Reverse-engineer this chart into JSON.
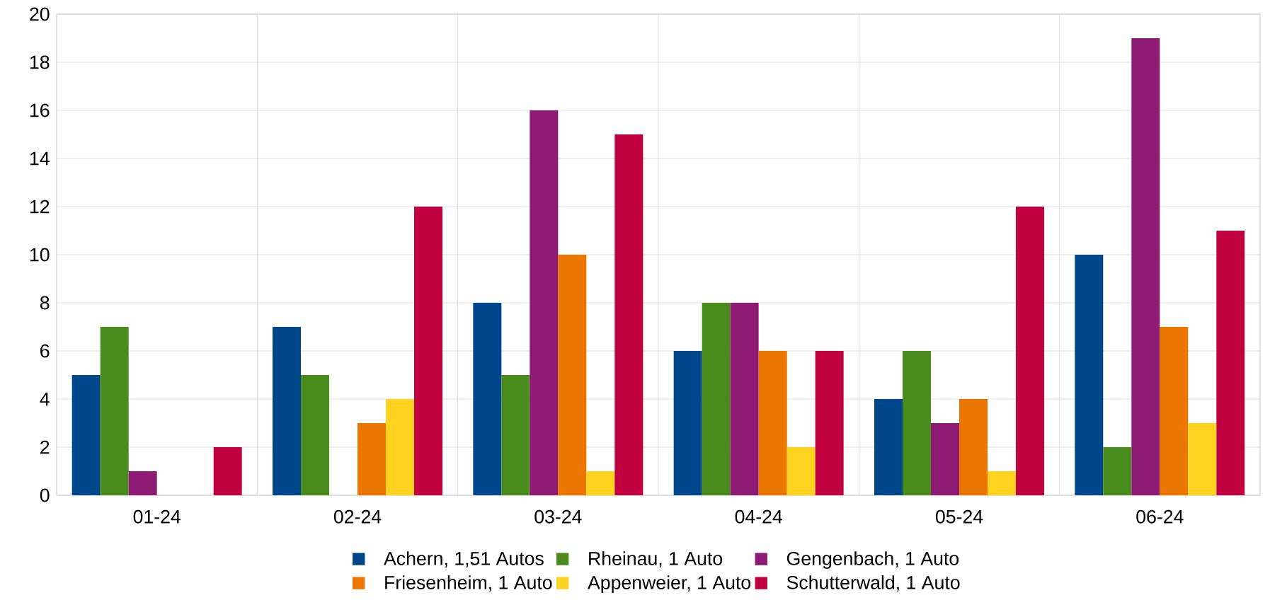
{
  "chart_data": {
    "type": "bar",
    "categories": [
      "01-24",
      "02-24",
      "03-24",
      "04-24",
      "05-24",
      "06-24"
    ],
    "series": [
      {
        "name": "Achern, 1,51 Autos",
        "color": "#00468a",
        "values": [
          5,
          7,
          8,
          6,
          4,
          10
        ]
      },
      {
        "name": "Rheinau, 1 Auto",
        "color": "#4a8b1e",
        "values": [
          7,
          5,
          5,
          8,
          6,
          2
        ]
      },
      {
        "name": "Gengenbach, 1 Auto",
        "color": "#8e1b73",
        "values": [
          1,
          0,
          16,
          8,
          3,
          19
        ]
      },
      {
        "name": "Friesenheim, 1 Auto",
        "color": "#eb7600",
        "values": [
          0,
          3,
          10,
          6,
          4,
          7
        ]
      },
      {
        "name": "Appenweier, 1 Auto",
        "color": "#ffd320",
        "values": [
          0,
          4,
          1,
          2,
          1,
          3
        ]
      },
      {
        "name": "Schutterwald, 1 Auto",
        "color": "#c0003f",
        "values": [
          2,
          12,
          15,
          6,
          12,
          11
        ]
      }
    ],
    "ylim": [
      0,
      20
    ],
    "yticks": [
      0,
      2,
      4,
      6,
      8,
      10,
      12,
      14,
      16,
      18,
      20
    ],
    "grid": true,
    "legend": "bottom"
  }
}
